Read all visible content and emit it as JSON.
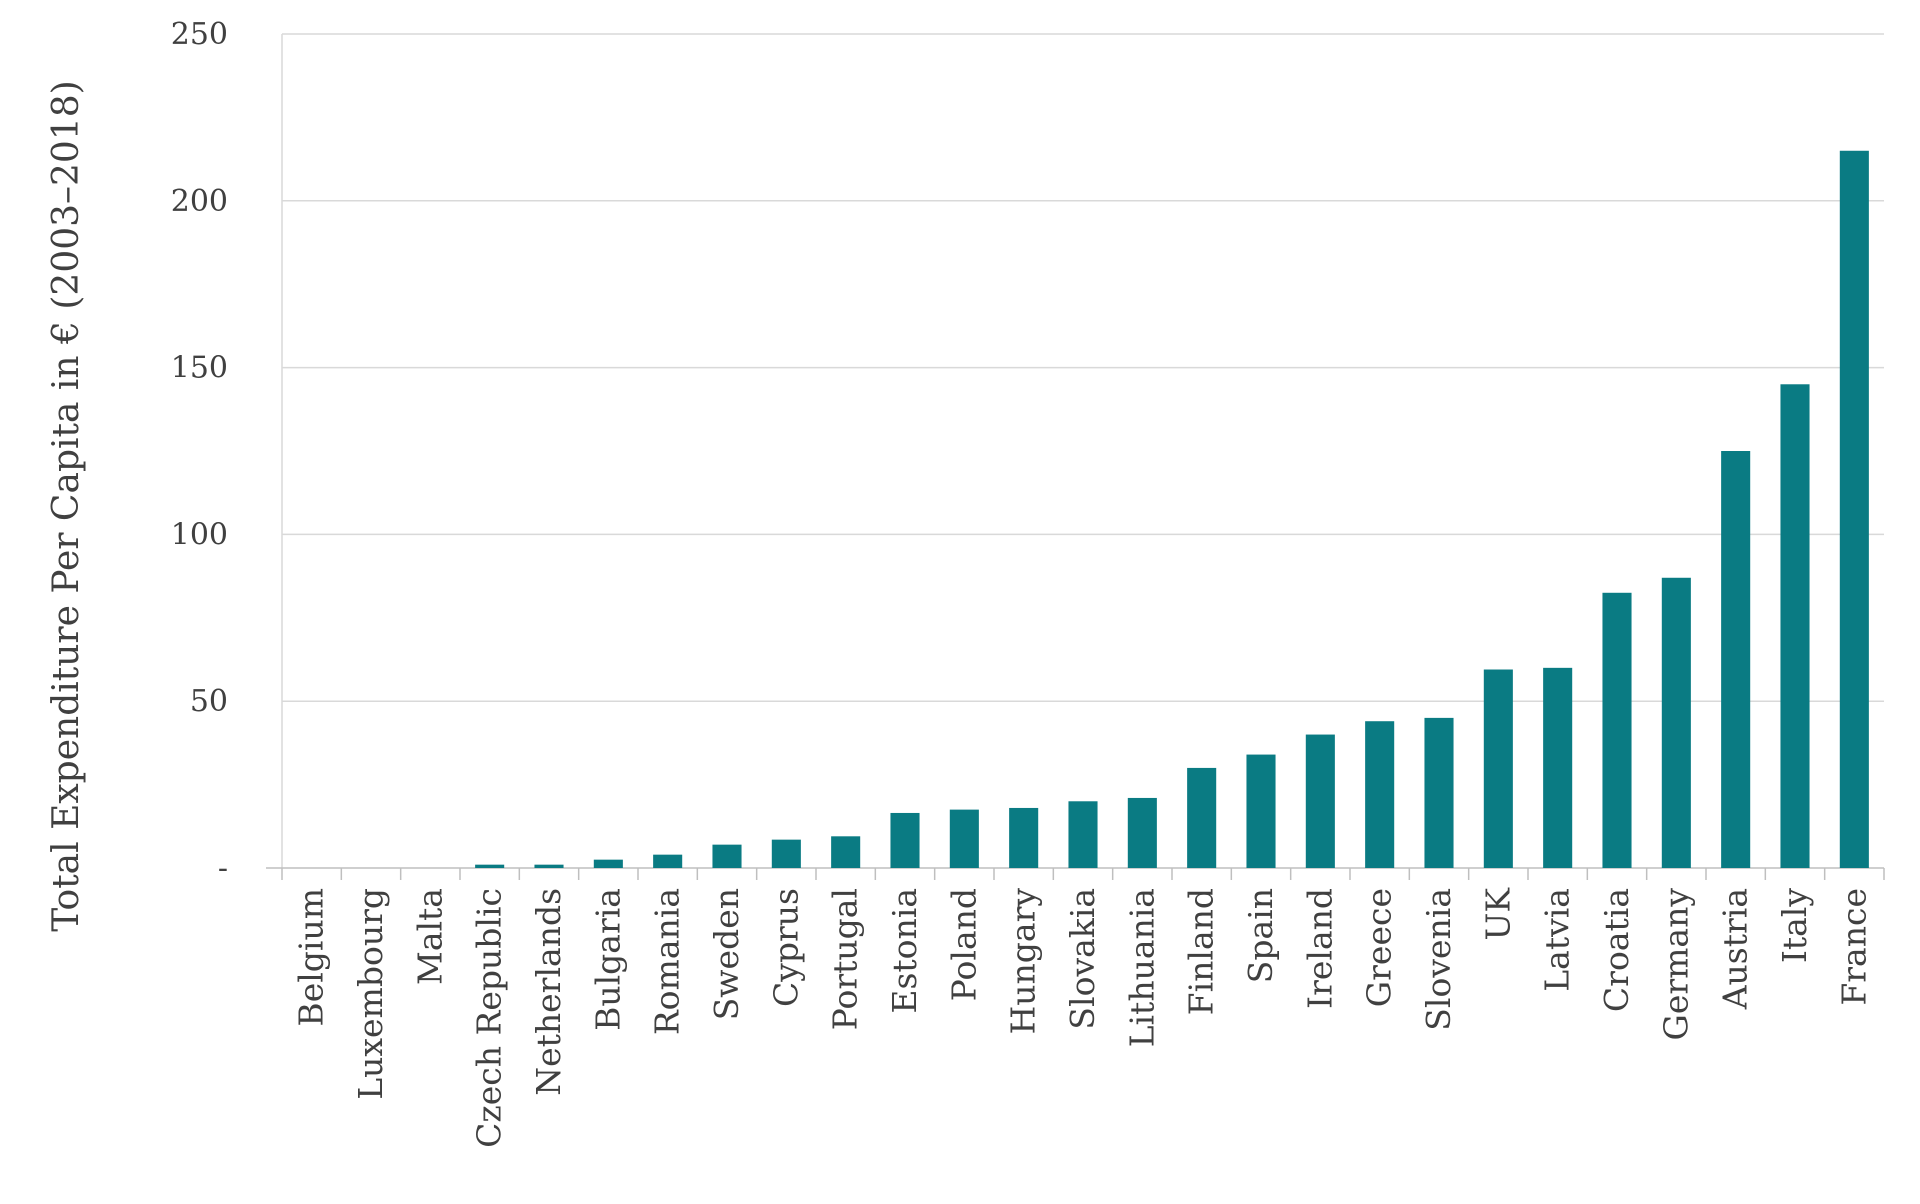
{
  "chart_data": {
    "type": "bar",
    "title": "",
    "xlabel": "",
    "ylabel": "Total Expenditure Per Capita in € (2003–2018)",
    "ylim": [
      0,
      250
    ],
    "yticks": [
      {
        "value": 0,
        "label": "-"
      },
      {
        "value": 50,
        "label": "50"
      },
      {
        "value": 100,
        "label": "100"
      },
      {
        "value": 150,
        "label": "150"
      },
      {
        "value": 200,
        "label": "200"
      },
      {
        "value": 250,
        "label": "250"
      }
    ],
    "grid": true,
    "bar_color": "#0a7b83",
    "categories": [
      "Belgium",
      "Luxembourg",
      "Malta",
      "Czech Republic",
      "Netherlands",
      "Bulgaria",
      "Romania",
      "Sweden",
      "Cyprus",
      "Portugal",
      "Estonia",
      "Poland",
      "Hungary",
      "Slovakia",
      "Lithuania",
      "Finland",
      "Spain",
      "Ireland",
      "Greece",
      "Slovenia",
      "UK",
      "Latvia",
      "Croatia",
      "Germany",
      "Austria",
      "Italy",
      "France"
    ],
    "values": [
      0,
      0,
      0,
      1,
      1,
      2.5,
      4,
      7,
      8.5,
      9.5,
      16.5,
      17.5,
      18,
      20,
      21,
      30,
      34,
      40,
      44,
      45,
      59.5,
      60,
      82.5,
      87,
      125,
      145,
      215
    ]
  }
}
